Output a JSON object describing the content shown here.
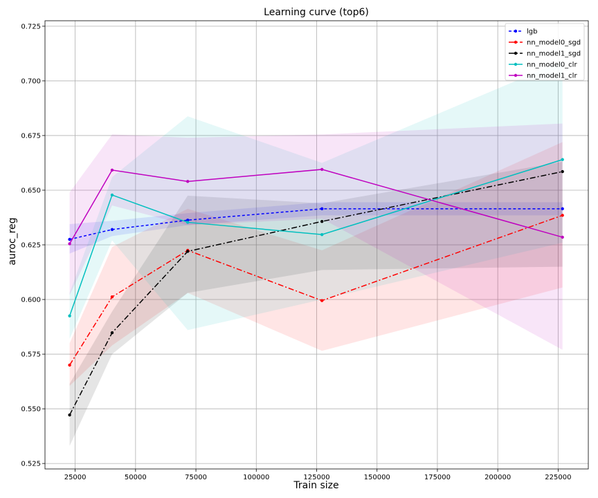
{
  "chart_data": {
    "type": "line",
    "title": "Learning curve (top6)",
    "xlabel": "Train size",
    "ylabel": "auroc_reg",
    "xlim": [
      12500,
      237500
    ],
    "ylim": [
      0.5225,
      0.7275
    ],
    "xticks": [
      25000,
      50000,
      75000,
      100000,
      125000,
      150000,
      175000,
      200000,
      225000
    ],
    "yticks": [
      0.525,
      0.55,
      0.575,
      0.6,
      0.625,
      0.65,
      0.675,
      0.7,
      0.725
    ],
    "grid": true,
    "legend_position": "top-right",
    "x": [
      22700,
      40300,
      71600,
      127200,
      226800
    ],
    "series": [
      {
        "name": "lgb",
        "color": "#0000ff",
        "dash": "4,3",
        "values": [
          0.6275,
          0.632,
          0.6363,
          0.6415,
          0.6415
        ],
        "lower": [
          0.621,
          0.629,
          0.634,
          0.6385,
          0.6385
        ],
        "upper": [
          0.6345,
          0.636,
          0.6395,
          0.6445,
          0.6445
        ]
      },
      {
        "name": "nn_model0_sgd",
        "color": "#ff0000",
        "dash": "8,3,2,3",
        "values": [
          0.57,
          0.6012,
          0.6225,
          0.5995,
          0.6385
        ],
        "lower": [
          0.5605,
          0.579,
          0.603,
          0.5765,
          0.6055
        ],
        "upper": [
          0.58,
          0.624,
          0.6415,
          0.6225,
          0.672
        ]
      },
      {
        "name": "nn_model1_sgd",
        "color": "#000000",
        "dash": "8,3,2,3",
        "values": [
          0.5472,
          0.5848,
          0.622,
          0.6357,
          0.6585
        ],
        "lower": [
          0.533,
          0.575,
          0.603,
          0.6135,
          0.615
        ],
        "upper": [
          0.5615,
          0.5945,
          0.6475,
          0.644,
          0.663
        ]
      },
      {
        "name": "nn_model0_clr",
        "color": "#00bfbf",
        "dash": "",
        "values": [
          0.5925,
          0.6478,
          0.6353,
          0.6297,
          0.664
        ],
        "lower": [
          0.582,
          0.627,
          0.586,
          0.6,
          0.626
        ],
        "upper": [
          0.603,
          0.656,
          0.6838,
          0.6625,
          0.709
        ]
      },
      {
        "name": "nn_model1_clr",
        "color": "#bf00bf",
        "dash": "",
        "values": [
          0.6255,
          0.6592,
          0.654,
          0.6595,
          0.6285
        ],
        "lower": [
          0.602,
          0.643,
          0.634,
          0.637,
          0.577
        ],
        "upper": [
          0.649,
          0.6755,
          0.674,
          0.6755,
          0.6805
        ]
      }
    ]
  }
}
